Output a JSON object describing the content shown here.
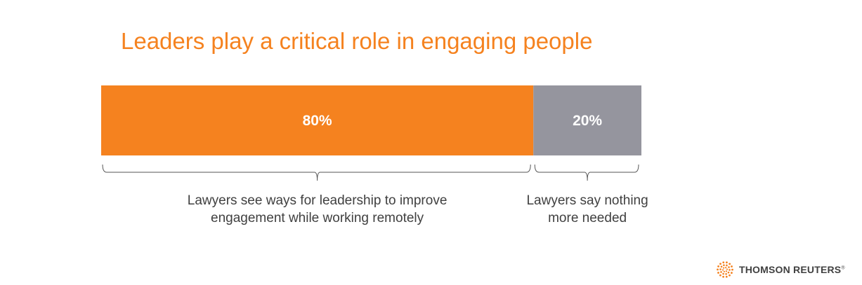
{
  "title": "Leaders play a critical role in engaging people",
  "colors": {
    "accent": "#f5821f",
    "grey": "#95959e",
    "text": "#404040"
  },
  "chart_data": {
    "type": "bar",
    "stacked": true,
    "orientation": "horizontal",
    "title": "Leaders play a critical role in engaging people",
    "series": [
      {
        "value": 80,
        "label": "80%",
        "color": "#f5821f"
      },
      {
        "value": 20,
        "label": "20%",
        "color": "#95959e"
      }
    ],
    "annotations": [
      {
        "line1": "Lawyers see ways for leadership to improve",
        "line2": "engagement while working remotely"
      },
      {
        "line1": "Lawyers say nothing",
        "line2": "more needed"
      }
    ],
    "xlim": [
      0,
      100
    ]
  },
  "logo": {
    "name": "THOMSON REUTERS",
    "mark": "®"
  }
}
